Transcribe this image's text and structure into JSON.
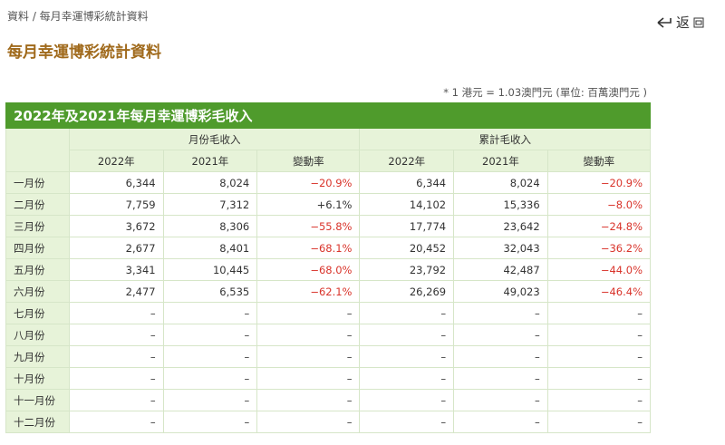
{
  "breadcrumb": "資料 / 每月幸運博彩統計資料",
  "back": "返",
  "title": "每月幸運博彩統計資料",
  "note": "* 1 港元 = 1.03澳門元 (單位: 百萬澳門元 )",
  "table": {
    "caption": "2022年及2021年每月幸運博彩毛收入",
    "groups": [
      "月份毛收入",
      "累計毛收入"
    ],
    "columns": [
      "2022年",
      "2021年",
      "變動率",
      "2022年",
      "2021年",
      "變動率"
    ],
    "rows": [
      [
        "一月份",
        "6,344",
        "8,024",
        "−20.9%",
        "6,344",
        "8,024",
        "−20.9%"
      ],
      [
        "二月份",
        "7,759",
        "7,312",
        "+6.1%",
        "14,102",
        "15,336",
        "−8.0%"
      ],
      [
        "三月份",
        "3,672",
        "8,306",
        "−55.8%",
        "17,774",
        "23,642",
        "−24.8%"
      ],
      [
        "四月份",
        "2,677",
        "8,401",
        "−68.1%",
        "20,452",
        "32,043",
        "−36.2%"
      ],
      [
        "五月份",
        "3,341",
        "10,445",
        "−68.0%",
        "23,792",
        "42,487",
        "−44.0%"
      ],
      [
        "六月份",
        "2,477",
        "6,535",
        "−62.1%",
        "26,269",
        "49,023",
        "−46.4%"
      ],
      [
        "七月份",
        "–",
        "–",
        "–",
        "–",
        "–",
        "–"
      ],
      [
        "八月份",
        "–",
        "–",
        "–",
        "–",
        "–",
        "–"
      ],
      [
        "九月份",
        "–",
        "–",
        "–",
        "–",
        "–",
        "–"
      ],
      [
        "十月份",
        "–",
        "–",
        "–",
        "–",
        "–",
        "–"
      ],
      [
        "十一月份",
        "–",
        "–",
        "–",
        "–",
        "–",
        "–"
      ],
      [
        "十二月份",
        "–",
        "–",
        "–",
        "–",
        "–",
        "–"
      ]
    ]
  }
}
